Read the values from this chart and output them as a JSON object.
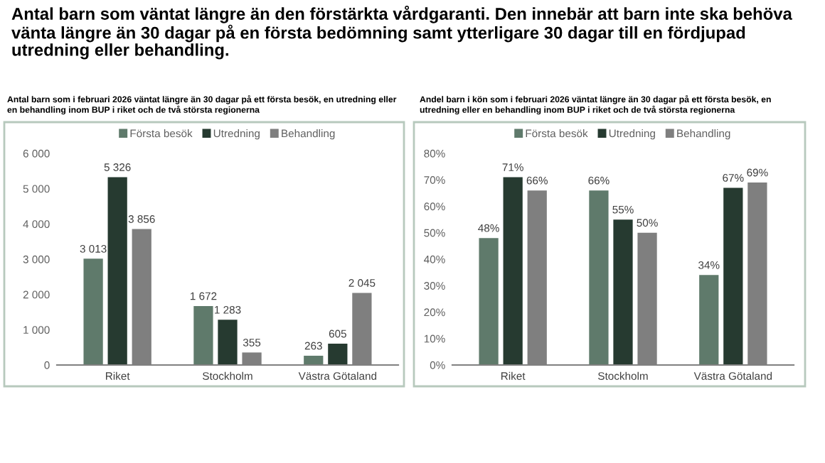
{
  "chart_data": [
    {
      "type": "bar",
      "title": "Antal barn som väntat längre än den förstärkta vårdgaranti. Den innebär att barn inte ska behöva vänta längre än 30 dagar på en första bedömning samt ytterligare 30 dagar till en fördjupad utredning eller behandling.",
      "subtitle": "Antal barn som i februari 2026 väntat längre än 30 dagar på ett första besök, en utredning eller en behandling inom BUP i riket och de två största regionerna",
      "categories": [
        "Riket",
        "Stockholm",
        "Västra Götaland"
      ],
      "series": [
        {
          "name": "Första besök",
          "color": "#5f7a6b",
          "values": [
            3013,
            1672,
            263
          ],
          "value_labels": [
            "3 013",
            "1 672",
            "263"
          ]
        },
        {
          "name": "Utredning",
          "color": "#263a30",
          "values": [
            5326,
            1283,
            605
          ],
          "value_labels": [
            "5 326",
            "1 283",
            "605"
          ]
        },
        {
          "name": "Behandling",
          "color": "#7f7f7f",
          "values": [
            3856,
            355,
            2045
          ],
          "value_labels": [
            "3 856",
            "355",
            "2 045"
          ]
        }
      ],
      "ylim": [
        0,
        6000
      ],
      "yticks": [
        {
          "value": 0,
          "label": "0"
        },
        {
          "value": 1000,
          "label": "1 000"
        },
        {
          "value": 2000,
          "label": "2 000"
        },
        {
          "value": 3000,
          "label": "3 000"
        },
        {
          "value": 4000,
          "label": "4 000"
        },
        {
          "value": 5000,
          "label": "5 000"
        },
        {
          "value": 6000,
          "label": "6 000"
        }
      ],
      "grid": false,
      "legend": "top"
    },
    {
      "type": "bar",
      "subtitle": "Andel barn i kön som i februari 2026 väntat längre än 30 dagar på ett första besök, en utredning eller en behandling inom BUP i riket och de två största regionerna",
      "categories": [
        "Riket",
        "Stockholm",
        "Västra Götaland"
      ],
      "series": [
        {
          "name": "Första besök",
          "color": "#5f7a6b",
          "values": [
            48,
            66,
            34
          ],
          "value_labels": [
            "48%",
            "66%",
            "34%"
          ]
        },
        {
          "name": "Utredning",
          "color": "#263a30",
          "values": [
            71,
            55,
            67
          ],
          "value_labels": [
            "71%",
            "55%",
            "67%"
          ]
        },
        {
          "name": "Behandling",
          "color": "#7f7f7f",
          "values": [
            66,
            50,
            69
          ],
          "value_labels": [
            "66%",
            "50%",
            "69%"
          ]
        }
      ],
      "ylim": [
        0,
        80
      ],
      "yticks": [
        {
          "value": 0,
          "label": "0%"
        },
        {
          "value": 10,
          "label": "10%"
        },
        {
          "value": 20,
          "label": "20%"
        },
        {
          "value": 30,
          "label": "30%"
        },
        {
          "value": 40,
          "label": "40%"
        },
        {
          "value": 50,
          "label": "50%"
        },
        {
          "value": 60,
          "label": "60%"
        },
        {
          "value": 70,
          "label": "70%"
        },
        {
          "value": 80,
          "label": "80%"
        }
      ],
      "grid": false,
      "legend": "top"
    }
  ]
}
